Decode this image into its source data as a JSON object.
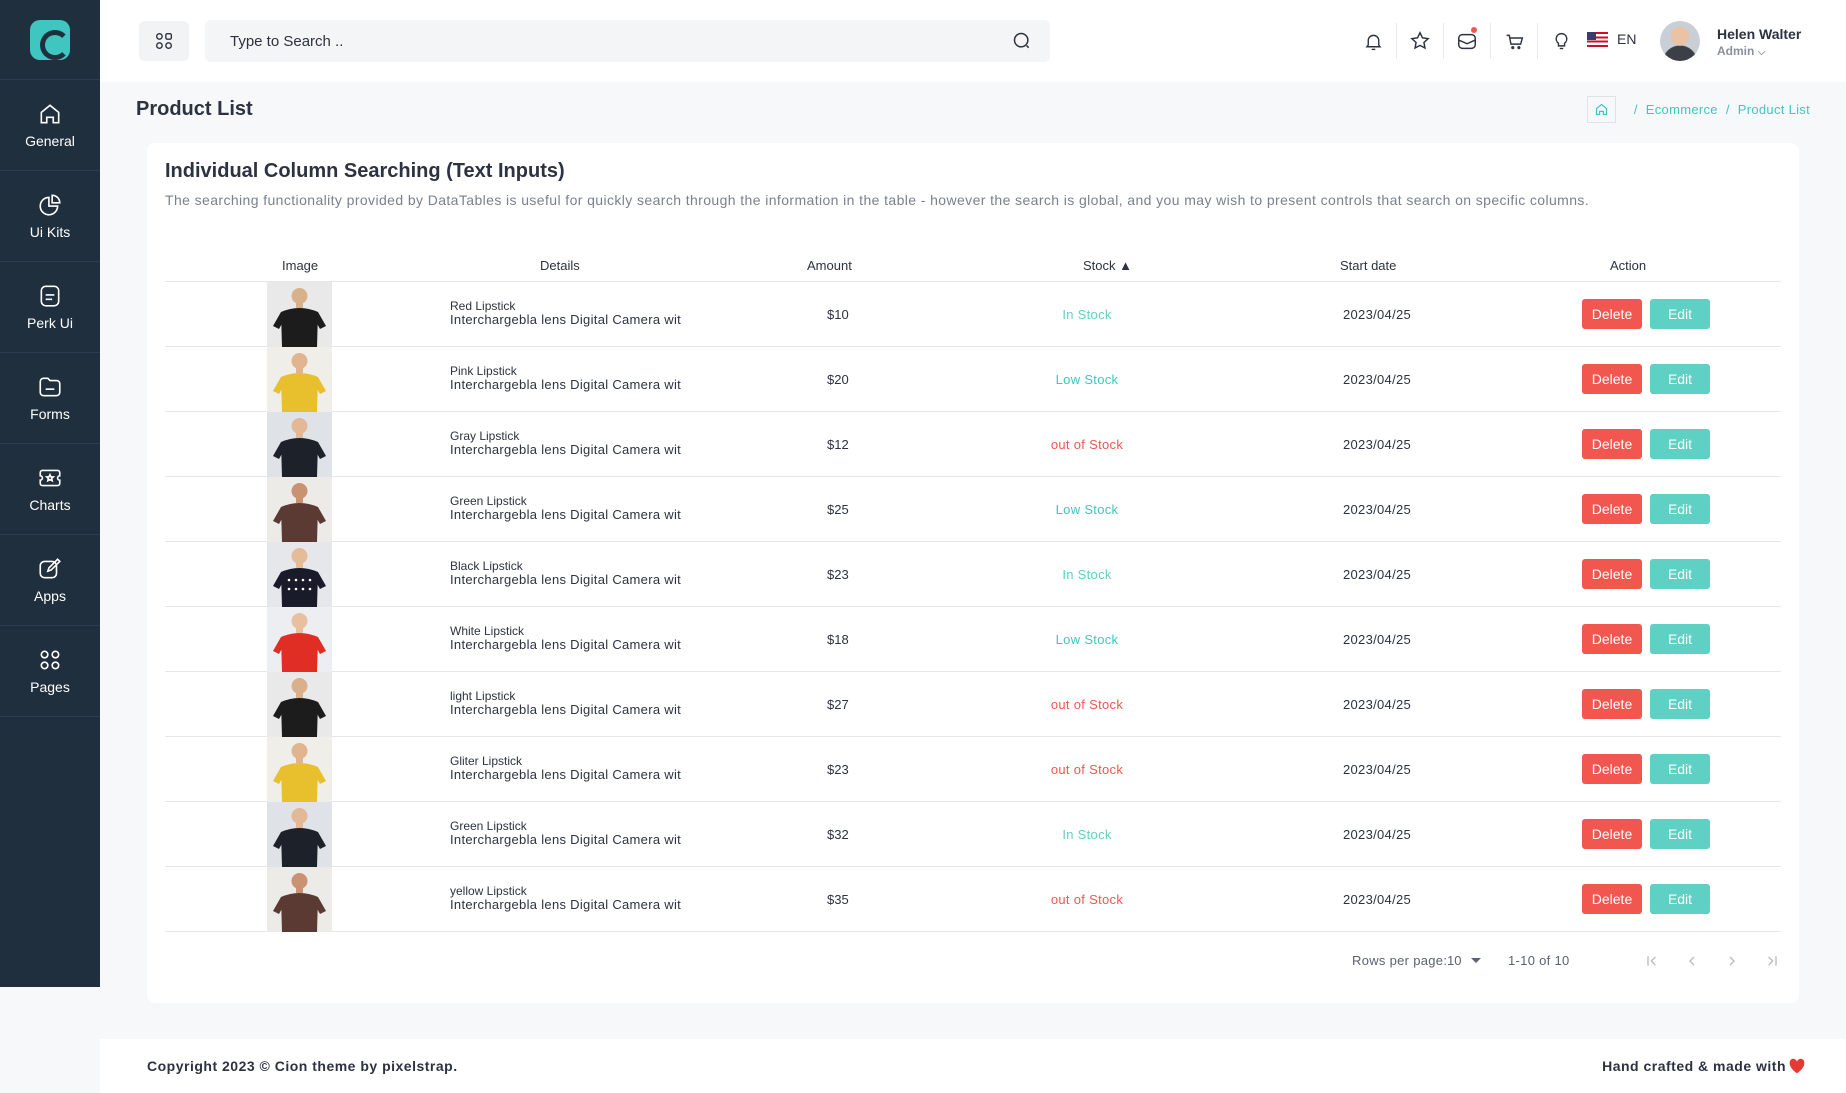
{
  "sidebar": {
    "items": [
      {
        "label": "General",
        "icon": "home-icon"
      },
      {
        "label": "Ui Kits",
        "icon": "pie-chart-icon"
      },
      {
        "label": "Perk Ui",
        "icon": "document-icon"
      },
      {
        "label": "Forms",
        "icon": "folder-icon"
      },
      {
        "label": "Charts",
        "icon": "ticket-icon"
      },
      {
        "label": "Apps",
        "icon": "edit-icon"
      },
      {
        "label": "Pages",
        "icon": "grid-icon"
      }
    ]
  },
  "header": {
    "search_placeholder": "Type to Search ..",
    "language": "EN",
    "user_name": "Helen Walter",
    "user_role": "Admin"
  },
  "page": {
    "title": "Product List",
    "breadcrumb": [
      "Ecommerce",
      "Product List"
    ]
  },
  "card": {
    "title": "Individual Column Searching (Text Inputs)",
    "description": "The searching functionality provided by DataTables is useful for quickly search through the information in the table - however the search is global, and you may wish to present controls that search on specific columns."
  },
  "table": {
    "columns": [
      "Image",
      "Details",
      "Amount",
      "Stock ▲",
      "Start date",
      "Action"
    ],
    "delete_label": "Delete",
    "edit_label": "Edit",
    "rows": [
      {
        "name": "Red Lipstick",
        "desc": "Interchargebla lens Digital Camera wit",
        "amount": "$10",
        "stock": "In Stock",
        "date": "2023/04/25",
        "img": "black-tshirt"
      },
      {
        "name": "Pink Lipstick",
        "desc": "Interchargebla lens Digital Camera wit",
        "amount": "$20",
        "stock": "Low Stock",
        "date": "2023/04/25",
        "img": "yellow-tshirt"
      },
      {
        "name": "Gray Lipstick",
        "desc": "Interchargebla lens Digital Camera wit",
        "amount": "$12",
        "stock": "out of Stock",
        "date": "2023/04/25",
        "img": "woman-tank-top"
      },
      {
        "name": "Green Lipstick",
        "desc": "Interchargebla lens Digital Camera wit",
        "amount": "$25",
        "stock": "Low Stock",
        "date": "2023/04/25",
        "img": "man-brown-tshirt"
      },
      {
        "name": "Black Lipstick",
        "desc": "Interchargebla lens Digital Camera wit",
        "amount": "$23",
        "stock": "In Stock",
        "date": "2023/04/25",
        "img": "polka-dot-top"
      },
      {
        "name": "White Lipstick",
        "desc": "Interchargebla lens Digital Camera wit",
        "amount": "$18",
        "stock": "Low Stock",
        "date": "2023/04/25",
        "img": "red-blouse"
      },
      {
        "name": "light Lipstick",
        "desc": "Interchargebla lens Digital Camera wit",
        "amount": "$27",
        "stock": "out of Stock",
        "date": "2023/04/25",
        "img": "black-tshirt"
      },
      {
        "name": "Gliter Lipstick",
        "desc": "Interchargebla lens Digital Camera wit",
        "amount": "$23",
        "stock": "out of Stock",
        "date": "2023/04/25",
        "img": "yellow-tshirt"
      },
      {
        "name": "Green Lipstick",
        "desc": "Interchargebla lens Digital Camera wit",
        "amount": "$32",
        "stock": "In Stock",
        "date": "2023/04/25",
        "img": "woman-tank-top"
      },
      {
        "name": "yellow Lipstick",
        "desc": "Interchargebla lens Digital Camera wit",
        "amount": "$35",
        "stock": "out of Stock",
        "date": "2023/04/25",
        "img": "man-brown-tshirt"
      }
    ]
  },
  "pagination": {
    "rows_per_page_label": "Rows per page:",
    "rows_per_page": "10",
    "range": "1-10 of 10"
  },
  "footer": {
    "copyright": "Copyright 2023 © Cion theme by pixelstrap.",
    "made_with": "Hand crafted & made with"
  },
  "colors": {
    "accent": "#3fc6c0",
    "sidebar": "#1f2f3e",
    "danger": "#f1564f",
    "edit": "#5fd0c4",
    "stock_in": "#5fd0c4",
    "stock_low": "#3fc6c0",
    "stock_out": "#f1564f"
  }
}
